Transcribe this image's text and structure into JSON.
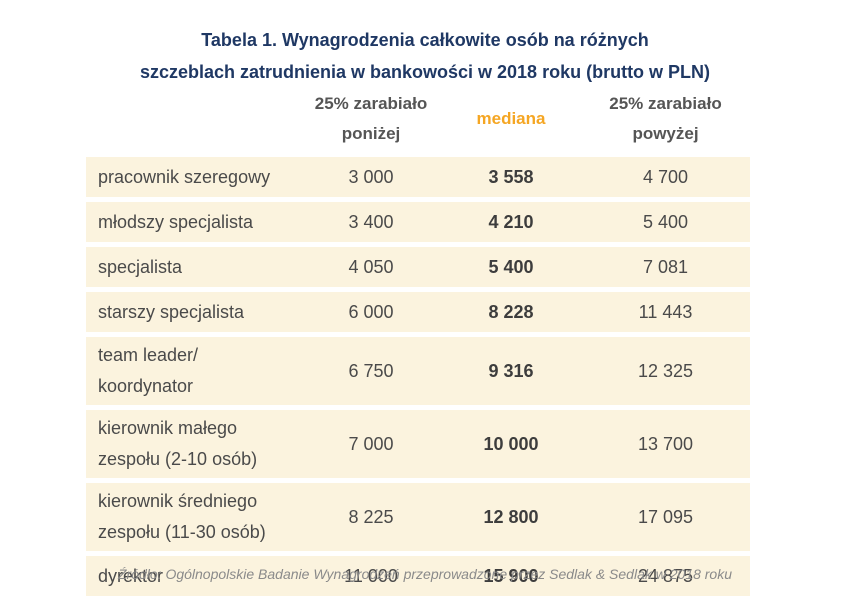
{
  "title": {
    "line1": "Tabela 1. Wynagrodzenia całkowite osób na różnych",
    "line2": "szczeblach zatrudnienia w bankowości w 2018 roku (brutto w PLN)"
  },
  "table": {
    "columns": {
      "low_line1": "25% zarabiało",
      "low_line2": "poniżej",
      "median": "mediana",
      "high_line1": "25% zarabiało",
      "high_line2": "powyżej"
    },
    "rows": [
      {
        "label_line1": "pracownik szeregowy",
        "label_line2": "",
        "low": "3 000",
        "median": "3 558",
        "high": "4 700"
      },
      {
        "label_line1": "młodszy specjalista",
        "label_line2": "",
        "low": "3 400",
        "median": "4 210",
        "high": "5 400"
      },
      {
        "label_line1": "specjalista",
        "label_line2": "",
        "low": "4 050",
        "median": "5 400",
        "high": "7 081"
      },
      {
        "label_line1": "starszy specjalista",
        "label_line2": "",
        "low": "6 000",
        "median": "8 228",
        "high": "11 443"
      },
      {
        "label_line1": "team leader/",
        "label_line2": "koordynator",
        "low": "6 750",
        "median": "9 316",
        "high": "12 325"
      },
      {
        "label_line1": "kierownik małego",
        "label_line2": "zespołu (2-10 osób)",
        "low": "7 000",
        "median": "10 000",
        "high": "13 700"
      },
      {
        "label_line1": "kierownik średniego",
        "label_line2": "zespołu (11-30 osób)",
        "low": "8 225",
        "median": "12 800",
        "high": "17 095"
      },
      {
        "label_line1": "dyrektor",
        "label_line2": "",
        "low": "11 000",
        "median": "15 900",
        "high": "24 875"
      }
    ]
  },
  "source": "Źródło: Ogólnopolskie Badanie Wynagrodzeń przeprowadzone przez Sedlak & Sedlak w 2018 roku",
  "colors": {
    "title": "#1f3864",
    "median_header": "#f5a623",
    "row_background": "#fbf3de",
    "source_text": "#8a8a8a"
  }
}
